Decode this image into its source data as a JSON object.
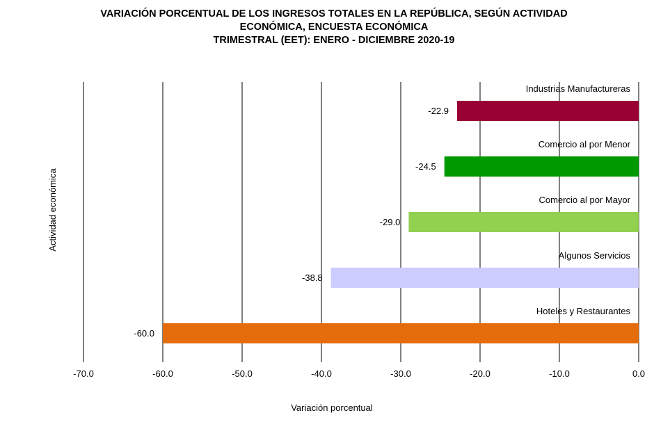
{
  "chart_data": {
    "type": "bar",
    "orientation": "horizontal",
    "title_lines": [
      "VARIACIÓN PORCENTUAL DE LOS INGRESOS TOTALES EN LA REPÚBLICA, SEGÚN ACTIVIDAD",
      "ECONÓMICA, ENCUESTA ECONÓMICA",
      "TRIMESTRAL (EET): ENERO - DICIEMBRE 2020-19"
    ],
    "xlabel": "Variación porcentual",
    "ylabel": "Actividad económica",
    "xlim": [
      -70,
      0
    ],
    "xticks": [
      "-70.0",
      "-60.0",
      "-50.0",
      "-40.0",
      "-30.0",
      "-20.0",
      "-10.0",
      "0.0"
    ],
    "grid": "vertical",
    "categories": [
      "Industrias Manufactureras",
      "Comercio al por Menor",
      "Comercio al por Mayor",
      "Algunos Servicios",
      "Hoteles y Restaurantes"
    ],
    "values": [
      -22.9,
      -24.5,
      -29.0,
      -38.8,
      -60.0
    ],
    "value_labels": [
      "-22.9",
      "-24.5",
      "-29.0",
      "-38.8",
      "-60.0"
    ],
    "colors": [
      "#990033",
      "#009900",
      "#92d050",
      "#ccccff",
      "#e46c0a"
    ]
  }
}
